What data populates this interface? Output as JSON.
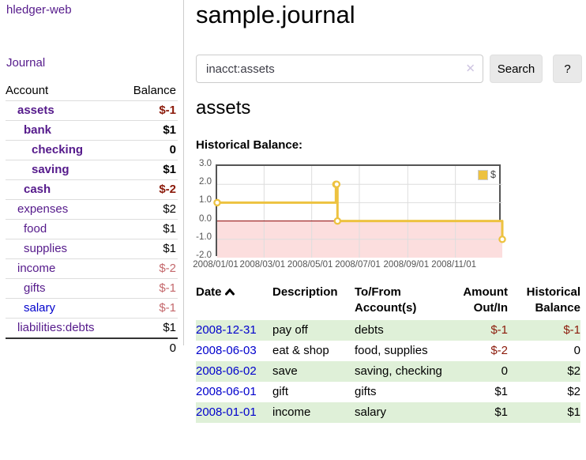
{
  "app": {
    "brand": "hledger-web",
    "nav": {
      "journal": "Journal"
    }
  },
  "sidebar": {
    "header": {
      "account": "Account",
      "balance": "Balance"
    },
    "accounts": [
      {
        "name": "assets",
        "indent": 1,
        "balance": "$-1",
        "bold": true,
        "neg": "strong",
        "link": "purple"
      },
      {
        "name": "bank",
        "indent": 2,
        "balance": "$1",
        "bold": true,
        "neg": "none",
        "link": "purple"
      },
      {
        "name": "checking",
        "indent": 3,
        "balance": "0",
        "bold": true,
        "neg": "none",
        "link": "purple"
      },
      {
        "name": "saving",
        "indent": 3,
        "balance": "$1",
        "bold": true,
        "neg": "none",
        "link": "purple"
      },
      {
        "name": "cash",
        "indent": 2,
        "balance": "$-2",
        "bold": true,
        "neg": "strong",
        "link": "purple"
      },
      {
        "name": "expenses",
        "indent": 1,
        "balance": "$2",
        "bold": false,
        "neg": "none",
        "link": "purple"
      },
      {
        "name": "food",
        "indent": 2,
        "balance": "$1",
        "bold": false,
        "neg": "none",
        "link": "purple"
      },
      {
        "name": "supplies",
        "indent": 2,
        "balance": "$1",
        "bold": false,
        "neg": "none",
        "link": "purple"
      },
      {
        "name": "income",
        "indent": 1,
        "balance": "$-2",
        "bold": false,
        "neg": "soft",
        "link": "purple"
      },
      {
        "name": "gifts",
        "indent": 2,
        "balance": "$-1",
        "bold": false,
        "neg": "soft",
        "link": "purple"
      },
      {
        "name": "salary",
        "indent": 2,
        "balance": "$-1",
        "bold": false,
        "neg": "soft",
        "link": "blue"
      },
      {
        "name": "liabilities:debts",
        "indent": 1,
        "balance": "$1",
        "bold": false,
        "neg": "none",
        "link": "purple"
      }
    ],
    "total": "0"
  },
  "main": {
    "title": "sample.journal",
    "search": {
      "value": "inacct:assets",
      "clear_icon": "✕",
      "button_label": "Search",
      "help_label": "?"
    },
    "account_heading": "assets",
    "chart_label": "Historical Balance:"
  },
  "chart_data": {
    "type": "line",
    "title": "Historical Balance",
    "steps": true,
    "legend_label": "$",
    "legend_position": "top-right",
    "line_color": "#EDC240",
    "marker_fill": "#ffffff",
    "grid_color": "#dddddd",
    "border_color": "#545454",
    "negative_region_color": "#fcdede",
    "zero_line_color": "#8b0000",
    "x_range": [
      "2008-01-01",
      "2008-12-31"
    ],
    "y_range": [
      -2,
      3
    ],
    "y_ticks": [
      {
        "label": "3.0",
        "value": 3
      },
      {
        "label": "2.0",
        "value": 2
      },
      {
        "label": "1.0",
        "value": 1
      },
      {
        "label": "0.0",
        "value": 0
      },
      {
        "label": "-1.0",
        "value": -1
      },
      {
        "label": "-2.0",
        "value": -2
      }
    ],
    "x_ticks": [
      {
        "label": "2008/01/01",
        "date": "2008-01-01"
      },
      {
        "label": "2008/03/01",
        "date": "2008-03-01"
      },
      {
        "label": "2008/05/01",
        "date": "2008-05-01"
      },
      {
        "label": "2008/07/01",
        "date": "2008-07-01"
      },
      {
        "label": "2008/09/01",
        "date": "2008-09-01"
      },
      {
        "label": "2008/11/01",
        "date": "2008-11-01"
      }
    ],
    "series": [
      {
        "name": "$",
        "points": [
          {
            "date": "2008-01-01",
            "value": 1
          },
          {
            "date": "2008-06-01",
            "value": 2
          },
          {
            "date": "2008-06-02",
            "value": 2
          },
          {
            "date": "2008-06-03",
            "value": 0
          },
          {
            "date": "2008-12-31",
            "value": -1
          }
        ]
      }
    ]
  },
  "register": {
    "headers": {
      "date": "Date",
      "description": "Description",
      "accounts": "To/From\nAccount(s)",
      "amount": "Amount\nOut/In",
      "balance": "Historical\nBalance"
    },
    "rows": [
      {
        "date": "2008-12-31",
        "description": "pay off",
        "accounts": "debts",
        "amount": "$-1",
        "amount_neg": true,
        "balance": "$-1",
        "balance_neg": true
      },
      {
        "date": "2008-06-03",
        "description": "eat & shop",
        "accounts": "food, supplies",
        "amount": "$-2",
        "amount_neg": true,
        "balance": "0",
        "balance_neg": false
      },
      {
        "date": "2008-06-02",
        "description": "save",
        "accounts": "saving, checking",
        "amount": "0",
        "amount_neg": false,
        "balance": "$2",
        "balance_neg": false
      },
      {
        "date": "2008-06-01",
        "description": "gift",
        "accounts": "gifts",
        "amount": "$1",
        "amount_neg": false,
        "balance": "$2",
        "balance_neg": false
      },
      {
        "date": "2008-01-01",
        "description": "income",
        "accounts": "salary",
        "amount": "$1",
        "amount_neg": false,
        "balance": "$1",
        "balance_neg": false
      }
    ]
  }
}
